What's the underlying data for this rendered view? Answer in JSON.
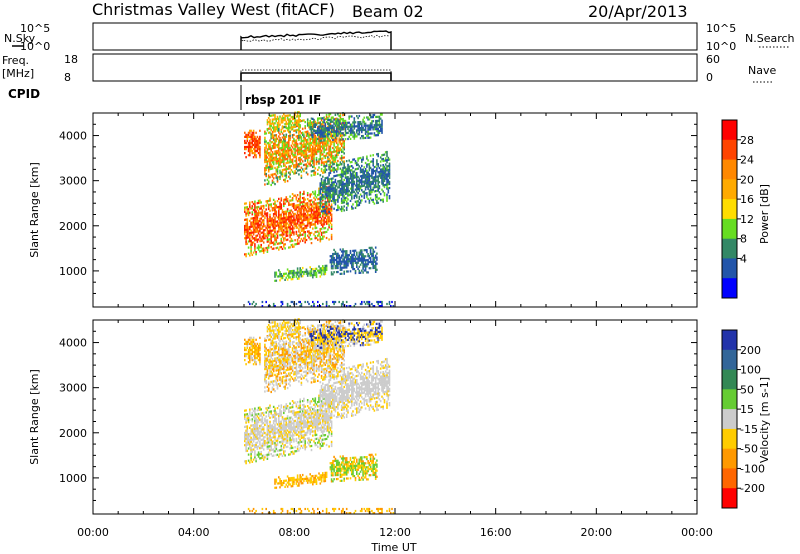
{
  "header": {
    "station": "Christmas Valley West (fitACF)",
    "beam": "Beam 02",
    "date": "20/Apr/2013"
  },
  "top_panels": {
    "nsky": {
      "label": "N.Sky",
      "left_ticks": [
        "10^5",
        "10^0"
      ],
      "right_ticks": [
        "10^5",
        "10^0"
      ],
      "right_label": "N.Search"
    },
    "freq": {
      "label_line1": "Freq.",
      "label_line2": "[MHz]",
      "left_ticks": [
        "18",
        "8"
      ],
      "right_ticks": [
        "60",
        "0"
      ],
      "right_label": "Nave"
    },
    "cpid": {
      "label": "CPID",
      "program": "rbsp 201 IF"
    }
  },
  "chart_data": [
    {
      "type": "heatmap",
      "name": "power",
      "ylabel": "Slant Range [km]",
      "xlabel": "",
      "xlim": [
        0,
        24
      ],
      "ylim": [
        200,
        4500
      ],
      "y_ticks": [
        "1000",
        "2000",
        "3000",
        "4000"
      ],
      "colorbar": {
        "label": "Power [dB]",
        "ticks": [
          "28",
          "24",
          "20",
          "16",
          "12",
          "8",
          "4"
        ],
        "colors": [
          "#ff0000",
          "#ff4400",
          "#ff8800",
          "#ffaa00",
          "#ffdd00",
          "#66dd22",
          "#338866",
          "#2255aa",
          "#0000ff"
        ]
      },
      "bands": [
        {
          "t0": 6.0,
          "t1": 9.5,
          "r0": 1300,
          "r1": 2500,
          "slope": 320,
          "colors": [
            "#ff2200",
            "#ff6600",
            "#ffaa00",
            "#66dd22"
          ]
        },
        {
          "t0": 6.8,
          "t1": 10.0,
          "r0": 2850,
          "r1": 4150,
          "slope": 380,
          "colors": [
            "#ff6600",
            "#ffaa00",
            "#66dd22",
            "#338866"
          ]
        },
        {
          "t0": 9.0,
          "t1": 11.8,
          "r0": 2200,
          "r1": 3300,
          "slope": 360,
          "colors": [
            "#338866",
            "#2255aa",
            "#66dd22"
          ]
        },
        {
          "t0": 6.0,
          "t1": 6.6,
          "r0": 3500,
          "r1": 4100,
          "slope": 0,
          "colors": [
            "#ff2200",
            "#ff6600",
            "#ffaa00"
          ]
        },
        {
          "t0": 6.9,
          "t1": 8.2,
          "r0": 4050,
          "r1": 4450,
          "slope": 200,
          "colors": [
            "#ffaa00",
            "#66dd22"
          ]
        },
        {
          "t0": 8.6,
          "t1": 11.5,
          "r0": 3850,
          "r1": 4350,
          "slope": 100,
          "colors": [
            "#2255aa",
            "#338866",
            "#66dd22"
          ]
        },
        {
          "t0": 7.2,
          "t1": 9.3,
          "r0": 760,
          "r1": 1000,
          "slope": 150,
          "colors": [
            "#66dd22",
            "#338866",
            "#ffdd00"
          ]
        },
        {
          "t0": 9.4,
          "t1": 11.3,
          "r0": 900,
          "r1": 1450,
          "slope": 90,
          "colors": [
            "#2255aa",
            "#338866"
          ]
        },
        {
          "t0": 6.0,
          "t1": 12.0,
          "r0": 200,
          "r1": 320,
          "slope": 0,
          "colors": [
            "#2255aa",
            "#338866",
            "#0000ff"
          ]
        }
      ]
    },
    {
      "type": "heatmap",
      "name": "velocity",
      "ylabel": "Slant Range [km]",
      "xlabel": "Time UT",
      "xlim": [
        0,
        24
      ],
      "ylim": [
        200,
        4500
      ],
      "x_ticks": [
        "00:00",
        "04:00",
        "08:00",
        "12:00",
        "16:00",
        "20:00",
        "00:00"
      ],
      "y_ticks": [
        "1000",
        "2000",
        "3000",
        "4000"
      ],
      "colorbar": {
        "label": "Velocity [m s-1]",
        "ticks": [
          "200",
          "100",
          "50",
          "15",
          "-15",
          "-50",
          "-100",
          "-200"
        ],
        "colors": [
          "#2233aa",
          "#336699",
          "#338855",
          "#66cc33",
          "#cccccc",
          "#ffcc00",
          "#ff9900",
          "#ff6600",
          "#ff0000"
        ]
      },
      "bands": [
        {
          "t0": 6.0,
          "t1": 9.5,
          "r0": 1300,
          "r1": 2500,
          "slope": 320,
          "colors": [
            "#cccccc",
            "#cccccc",
            "#ffcc00",
            "#66cc33"
          ]
        },
        {
          "t0": 6.8,
          "t1": 10.0,
          "r0": 2850,
          "r1": 4150,
          "slope": 380,
          "colors": [
            "#cccccc",
            "#ffcc00",
            "#ff9900",
            "#cccccc"
          ]
        },
        {
          "t0": 9.0,
          "t1": 11.8,
          "r0": 2200,
          "r1": 3300,
          "slope": 360,
          "colors": [
            "#cccccc",
            "#cccccc",
            "#ffcc00"
          ]
        },
        {
          "t0": 6.0,
          "t1": 6.6,
          "r0": 3500,
          "r1": 4100,
          "slope": 0,
          "colors": [
            "#ffcc00",
            "#ff9900",
            "#cccccc"
          ]
        },
        {
          "t0": 6.9,
          "t1": 8.2,
          "r0": 4050,
          "r1": 4450,
          "slope": 200,
          "colors": [
            "#ffcc00",
            "#cccccc"
          ]
        },
        {
          "t0": 8.6,
          "t1": 11.5,
          "r0": 3850,
          "r1": 4350,
          "slope": 100,
          "colors": [
            "#ffcc00",
            "#2233aa",
            "#cccccc"
          ]
        },
        {
          "t0": 7.2,
          "t1": 9.3,
          "r0": 760,
          "r1": 1000,
          "slope": 150,
          "colors": [
            "#ffcc00",
            "#ff9900"
          ]
        },
        {
          "t0": 9.4,
          "t1": 11.3,
          "r0": 900,
          "r1": 1450,
          "slope": 90,
          "colors": [
            "#ffcc00",
            "#66cc33",
            "#ff9900"
          ]
        },
        {
          "t0": 6.0,
          "t1": 12.0,
          "r0": 200,
          "r1": 320,
          "slope": 0,
          "colors": [
            "#ffcc00",
            "#ff9900"
          ]
        }
      ]
    }
  ]
}
